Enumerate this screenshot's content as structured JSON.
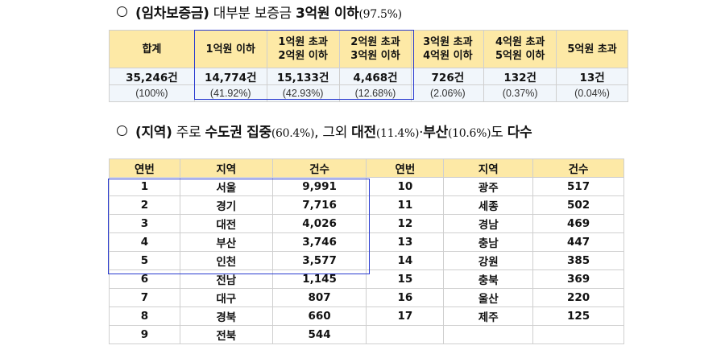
{
  "section1": {
    "bullet": "○",
    "parts": [
      {
        "text": "(임차보증금)",
        "style": "bold"
      },
      {
        "text": " 대부분 보증금 ",
        "style": "normal"
      },
      {
        "text": "3억원 이하",
        "style": "bold"
      },
      {
        "text": "(97.5%)",
        "style": "serif"
      }
    ]
  },
  "table1": {
    "headers": [
      [
        "합계"
      ],
      [
        "1억원 이하"
      ],
      [
        "1억원 초과",
        "2억원 이하"
      ],
      [
        "2억원 초과",
        "3억원 이하"
      ],
      [
        "3억원 초과",
        "4억원 이하"
      ],
      [
        "4억원 초과",
        "5억원 이하"
      ],
      [
        "5억원 초과"
      ]
    ],
    "counts": [
      "35,246건",
      "14,774건",
      "15,133건",
      "4,468건",
      "726건",
      "132건",
      "13건"
    ],
    "percents": [
      "(100%)",
      "(41.92%)",
      "(42.93%)",
      "(12.68%)",
      "(2.06%)",
      "(0.37%)",
      "(0.04%)"
    ]
  },
  "section2": {
    "bullet": "○",
    "parts": [
      {
        "text": "(지역)",
        "style": "bold"
      },
      {
        "text": " 주로 ",
        "style": "normal"
      },
      {
        "text": "수도권 집중",
        "style": "bold"
      },
      {
        "text": "(60.4%)",
        "style": "serif"
      },
      {
        "text": ", 그외 ",
        "style": "normal"
      },
      {
        "text": "대전",
        "style": "bold"
      },
      {
        "text": "(11.4%)",
        "style": "serif"
      },
      {
        "text": "·",
        "style": "normal"
      },
      {
        "text": "부산",
        "style": "bold"
      },
      {
        "text": "(10.6%)",
        "style": "serif"
      },
      {
        "text": "도 ",
        "style": "normal"
      },
      {
        "text": "다수",
        "style": "bold"
      }
    ]
  },
  "table2": {
    "headers": [
      "연번",
      "지역",
      "건수",
      "연번",
      "지역",
      "건수"
    ],
    "rows": [
      [
        [
          "1",
          "서울",
          "9,991"
        ],
        [
          "10",
          "광주",
          "517"
        ]
      ],
      [
        [
          "2",
          "경기",
          "7,716"
        ],
        [
          "11",
          "세종",
          "502"
        ]
      ],
      [
        [
          "3",
          "대전",
          "4,026"
        ],
        [
          "12",
          "경남",
          "469"
        ]
      ],
      [
        [
          "4",
          "부산",
          "3,746"
        ],
        [
          "13",
          "충남",
          "447"
        ]
      ],
      [
        [
          "5",
          "인천",
          "3,577"
        ],
        [
          "14",
          "강원",
          "385"
        ]
      ],
      [
        [
          "6",
          "전남",
          "1,145"
        ],
        [
          "15",
          "충북",
          "369"
        ]
      ],
      [
        [
          "7",
          "대구",
          "807"
        ],
        [
          "16",
          "울산",
          "220"
        ]
      ],
      [
        [
          "8",
          "경북",
          "660"
        ],
        [
          "17",
          "제주",
          "125"
        ]
      ],
      [
        [
          "9",
          "전북",
          "544"
        ],
        [
          "",
          "",
          ""
        ]
      ]
    ]
  }
}
